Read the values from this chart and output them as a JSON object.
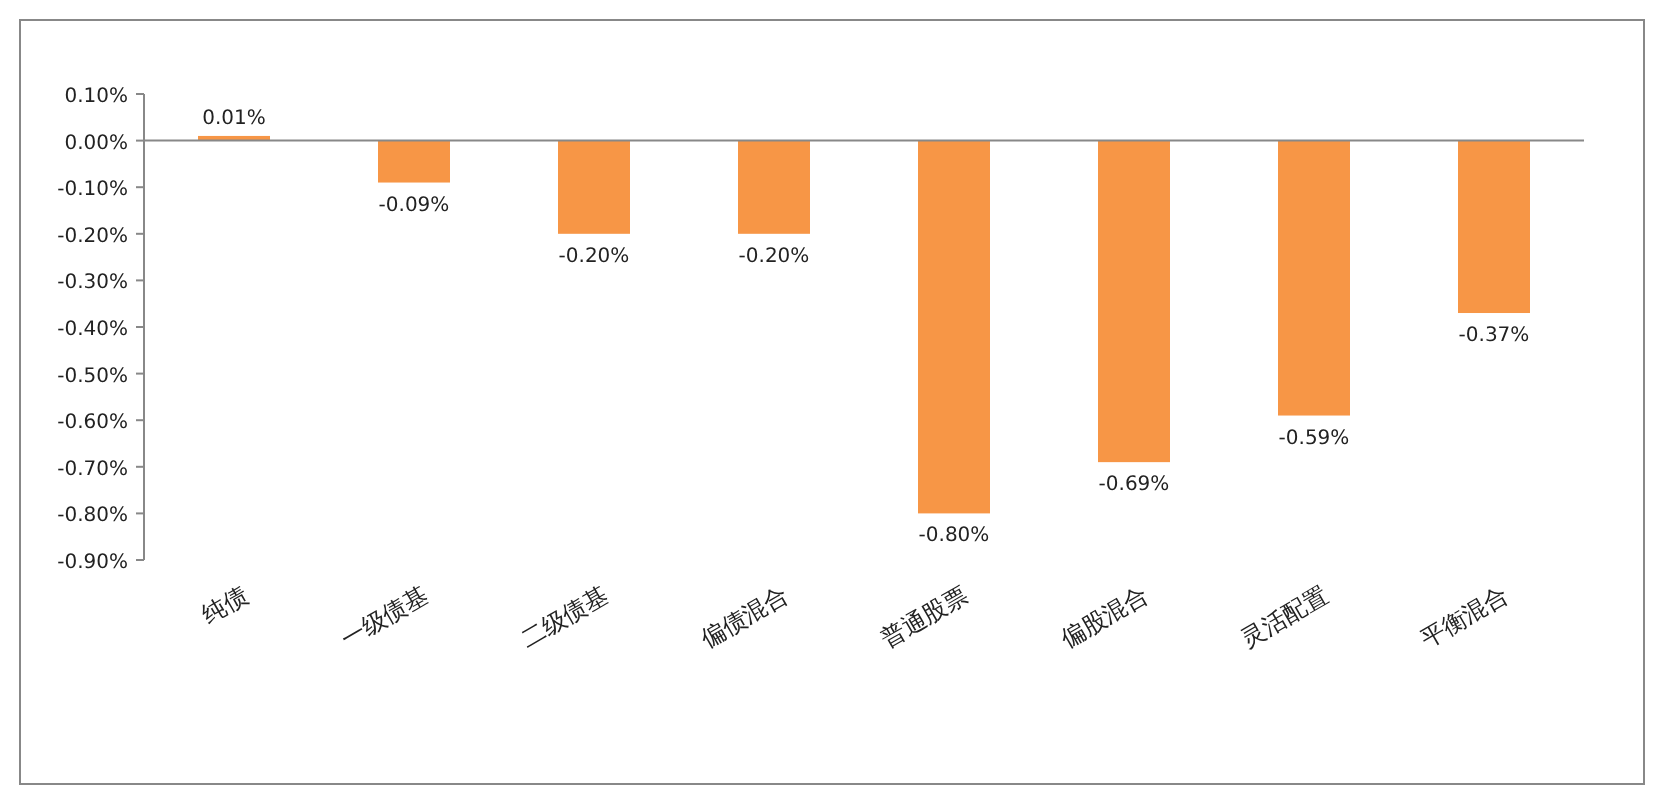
{
  "chart_data": {
    "type": "bar",
    "categories": [
      "纯债",
      "一级债基",
      "二级债基",
      "偏债混合",
      "普通股票",
      "偏股混合",
      "灵活配置",
      "平衡混合"
    ],
    "values": [
      0.01,
      -0.09,
      -0.2,
      -0.2,
      -0.8,
      -0.69,
      -0.59,
      -0.37
    ],
    "value_labels": [
      "0.01%",
      "-0.09%",
      "-0.20%",
      "-0.20%",
      "-0.80%",
      "-0.69%",
      "-0.59%",
      "-0.37%"
    ],
    "color": "#f79646",
    "ylim": [
      -0.9,
      0.1
    ],
    "yticks": [
      {
        "value": 0.1,
        "label": "0.10%"
      },
      {
        "value": 0,
        "label": "0.00%"
      },
      {
        "value": -0.1,
        "label": "-0.10%"
      },
      {
        "value": -0.2,
        "label": "-0.20%"
      },
      {
        "value": -0.3,
        "label": "-0.30%"
      },
      {
        "value": -0.4,
        "label": "-0.40%"
      },
      {
        "value": -0.5,
        "label": "-0.50%"
      },
      {
        "value": -0.6,
        "label": "-0.60%"
      },
      {
        "value": -0.7,
        "label": "-0.70%"
      },
      {
        "value": -0.8,
        "label": "-0.80%"
      },
      {
        "value": -0.9,
        "label": "-0.90%"
      }
    ]
  }
}
